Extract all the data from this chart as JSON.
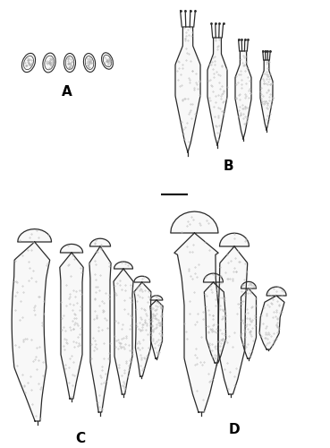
{
  "background_color": "#ffffff",
  "line_color": "#2a2a2a",
  "fill_color": "#f8f8f8",
  "label_A": "A",
  "label_B": "B",
  "label_C": "C",
  "label_D": "D",
  "label_fontsize": 11,
  "fig_width": 3.69,
  "fig_height": 5.0,
  "dpi": 100
}
